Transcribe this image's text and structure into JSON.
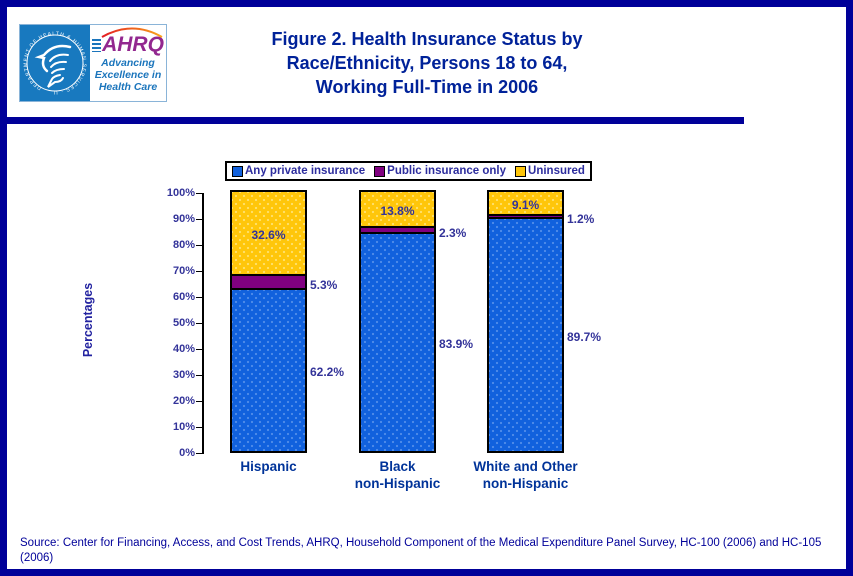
{
  "page": {
    "border_color": "#000099",
    "background": "#ffffff"
  },
  "header": {
    "logo": {
      "seal_text": "DEPARTMENT OF HEALTH & HUMAN SERVICES · USA",
      "acronym": "AHRQ",
      "tagline_lines": [
        "Advancing",
        "Excellence in",
        "Health Care"
      ],
      "hhs_blue": "#1879BF",
      "ahrq_purple": "#92278F",
      "tagline_blue": "#1B75BC"
    },
    "title_lines": [
      "Figure 2. Health Insurance Status by",
      "Race/Ethnicity, Persons 18 to 64,",
      "Working Full-Time in 2006"
    ]
  },
  "chart_data": {
    "type": "bar",
    "stacked": true,
    "title": "Figure 2. Health Insurance Status by Race/Ethnicity, Persons 18 to 64, Working Full-Time in 2006",
    "xlabel": "",
    "ylabel": "Percentages",
    "ylim": [
      0,
      100
    ],
    "grid": false,
    "legend_position": "top-center",
    "yticks": [
      "0%",
      "10%",
      "20%",
      "30%",
      "40%",
      "50%",
      "60%",
      "70%",
      "80%",
      "90%",
      "100%"
    ],
    "categories": [
      [
        "Hispanic"
      ],
      [
        "Black",
        "non-Hispanic"
      ],
      [
        "White and Other",
        "non-Hispanic"
      ]
    ],
    "series": [
      {
        "name": "Any private insurance",
        "color": "#1161DD",
        "texture": "dots-blue",
        "values": [
          62.2,
          83.9,
          89.7
        ],
        "labels": [
          "62.2%",
          "83.9%",
          "89.7%"
        ],
        "label_placement": "right"
      },
      {
        "name": "Public insurance only",
        "color": "#800080",
        "texture": "solid-purple",
        "values": [
          5.3,
          2.3,
          1.2
        ],
        "labels": [
          "5.3%",
          "2.3%",
          "1.2%"
        ],
        "label_placement": "right"
      },
      {
        "name": "Uninsured",
        "color": "#FFC60A",
        "texture": "dots-yellow",
        "values": [
          32.6,
          13.8,
          9.1
        ],
        "labels": [
          "32.6%",
          "13.8%",
          "9.1%"
        ],
        "label_placement": "inside"
      }
    ]
  },
  "footer": {
    "source_text": "Source: Center for Financing, Access, and Cost Trends, AHRQ, Household Component of the Medical Expenditure Panel Survey, HC-100 (2006) and HC-105 (2006)"
  }
}
